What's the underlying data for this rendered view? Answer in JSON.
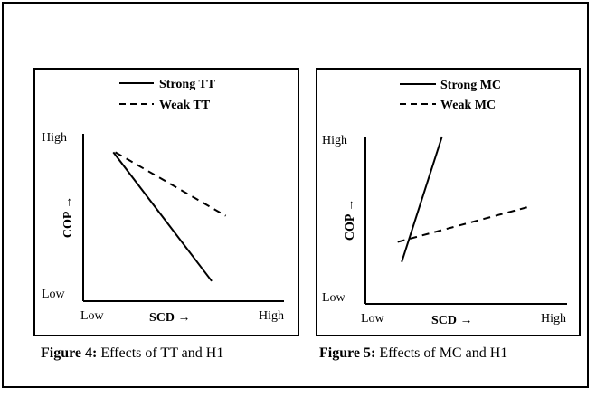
{
  "chart_data": [
    {
      "type": "line",
      "legend": [
        "Strong TT",
        "Weak TT"
      ],
      "legend_position": "top-center",
      "ylabel": "COP →",
      "xlabel": "SCD →",
      "x_ticks": [
        "Low",
        "High"
      ],
      "y_ticks": [
        "Low",
        "High"
      ],
      "xlim": [
        0,
        1
      ],
      "ylim": [
        0,
        1
      ],
      "grid": false,
      "series": [
        {
          "name": "Strong TT",
          "style": "solid",
          "x": [
            0.15,
            0.64
          ],
          "y": [
            0.89,
            0.12
          ]
        },
        {
          "name": "Weak TT",
          "style": "dashed",
          "x": [
            0.16,
            0.71
          ],
          "y": [
            0.89,
            0.51
          ]
        }
      ],
      "caption_label": "Figure 4:",
      "caption_text": " Effects of TT and H1"
    },
    {
      "type": "line",
      "legend": [
        "Strong MC",
        "Weak MC"
      ],
      "legend_position": "top-center",
      "ylabel": "COP →",
      "xlabel": "SCD →",
      "x_ticks": [
        "Low",
        "High"
      ],
      "y_ticks": [
        "Low",
        "High"
      ],
      "xlim": [
        0,
        1
      ],
      "ylim": [
        0,
        1
      ],
      "grid": false,
      "series": [
        {
          "name": "Strong MC",
          "style": "solid",
          "x": [
            0.18,
            0.38
          ],
          "y": [
            0.25,
            1.0
          ]
        },
        {
          "name": "Weak MC",
          "style": "dashed",
          "x": [
            0.16,
            0.81
          ],
          "y": [
            0.37,
            0.58
          ]
        }
      ],
      "caption_label": "Figure 5:",
      "caption_text": " Effects of MC and H1"
    }
  ]
}
